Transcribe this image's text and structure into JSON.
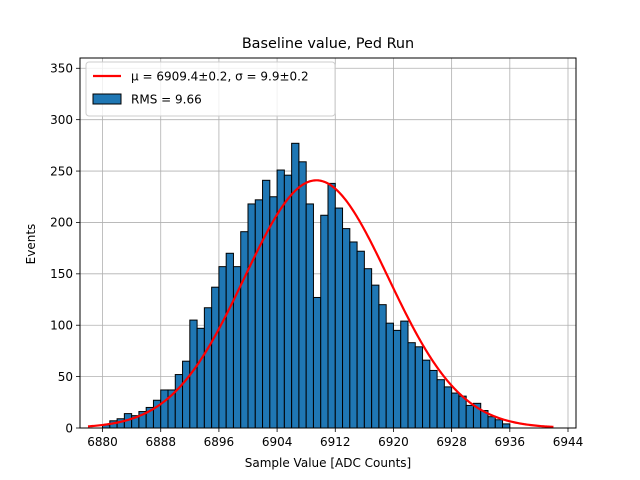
{
  "chart_data": {
    "type": "bar",
    "title": "Baseline value, Ped Run",
    "xlabel": "Sample Value [ADC Counts]",
    "ylabel": "Events",
    "xlim": [
      6876.9,
      6945.1
    ],
    "ylim": [
      0,
      360
    ],
    "xticks": [
      6880,
      6888,
      6896,
      6904,
      6912,
      6920,
      6928,
      6936,
      6944
    ],
    "yticks": [
      0,
      50,
      100,
      150,
      200,
      250,
      300,
      350
    ],
    "grid": true,
    "legend": {
      "placement": "top-left",
      "fit_label": "μ = 6909.4±0.2, σ = 9.9±0.2",
      "hist_label": "RMS = 9.66"
    },
    "colors": {
      "bar_fill": "#1f77b4",
      "bar_edge": "#000000",
      "fit_line": "#ff0000",
      "grid": "#b0b0b0"
    },
    "histogram": {
      "bin_start": 6880,
      "bin_width": 1,
      "counts": [
        3,
        7,
        9,
        14,
        12,
        16,
        20,
        27,
        37,
        37,
        52,
        65,
        105,
        97,
        117,
        137,
        157,
        170,
        157,
        191,
        218,
        222,
        241,
        225,
        251,
        246,
        277,
        259,
        218,
        127,
        207,
        238,
        214,
        194,
        181,
        172,
        155,
        139,
        120,
        102,
        95,
        104,
        83,
        79,
        66,
        56,
        47,
        40,
        34,
        31,
        22,
        24,
        17,
        11,
        8,
        4
      ]
    },
    "fit": {
      "mu": 6909.4,
      "sigma": 9.9,
      "amplitude": 241,
      "x_range": [
        6878,
        6942
      ]
    }
  }
}
